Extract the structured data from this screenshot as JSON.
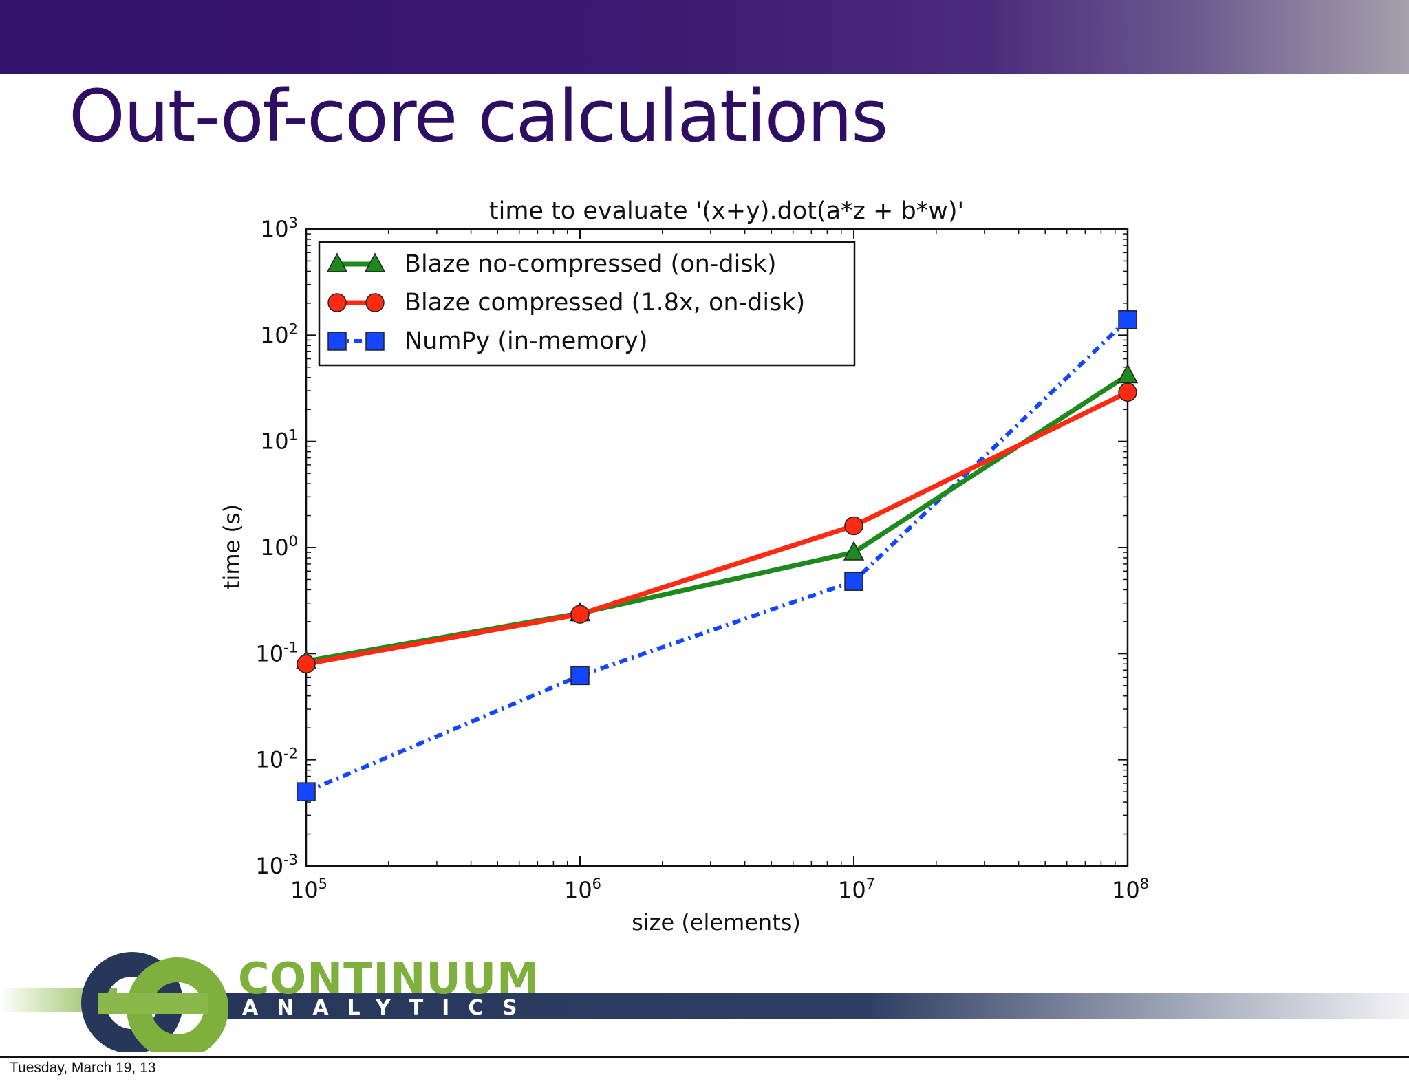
{
  "slide": {
    "title": "Out-of-core calculations",
    "footer_date": "Tuesday, March 19, 13",
    "logo": {
      "name": "CONTINUUM",
      "subtitle": "ANALYTICS"
    },
    "colors": {
      "header_bar": "#32136a",
      "title": "#2e0e63",
      "logo_green": "#7fb03d",
      "logo_navy": "#27375a"
    }
  },
  "chart_data": {
    "type": "line",
    "title": "time to evaluate '(x+y).dot(a*z + b*w)'",
    "xlabel": "size (elements)",
    "ylabel": "time (s)",
    "xscale": "log",
    "yscale": "log",
    "xlim": [
      100000,
      100000000
    ],
    "ylim": [
      0.001,
      1000
    ],
    "x_ticks": [
      {
        "base": "10",
        "exp": "5"
      },
      {
        "base": "10",
        "exp": "6"
      },
      {
        "base": "10",
        "exp": "7"
      },
      {
        "base": "10",
        "exp": "8"
      }
    ],
    "y_ticks": [
      {
        "base": "10",
        "exp": "-3"
      },
      {
        "base": "10",
        "exp": "-2"
      },
      {
        "base": "10",
        "exp": "-1"
      },
      {
        "base": "10",
        "exp": "0"
      },
      {
        "base": "10",
        "exp": "1"
      },
      {
        "base": "10",
        "exp": "2"
      },
      {
        "base": "10",
        "exp": "3"
      }
    ],
    "legend_position": "upper-left",
    "grid": false,
    "x": [
      100000,
      1000000,
      10000000,
      100000000
    ],
    "series": [
      {
        "name": "Blaze no-compressed (on-disk)",
        "values": [
          0.085,
          0.24,
          0.9,
          42
        ],
        "color": "#1e8a1e",
        "marker": "triangle",
        "linestyle": "solid"
      },
      {
        "name": "Blaze compressed (1.8x, on-disk)",
        "values": [
          0.08,
          0.235,
          1.6,
          29
        ],
        "color": "#ff2a12",
        "marker": "circle",
        "linestyle": "solid"
      },
      {
        "name": "NumPy (in-memory)",
        "values": [
          0.005,
          0.062,
          0.48,
          140
        ],
        "color": "#1445ff",
        "marker": "square",
        "linestyle": "dashdot"
      }
    ]
  }
}
